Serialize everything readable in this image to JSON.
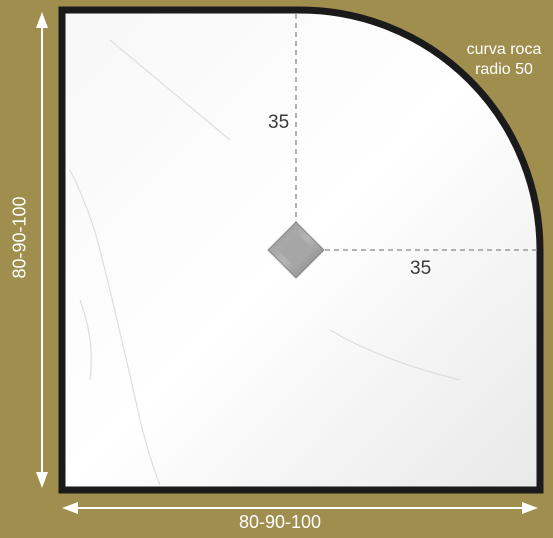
{
  "tray": {
    "corner_label_line1": "curva roca",
    "corner_label_line2": "radio 50",
    "drain_offset_top": "35",
    "drain_offset_right": "35",
    "side_dimension": "80-90-100",
    "bottom_dimension": "80-90-100"
  },
  "colors": {
    "background": "#a08e4e",
    "outline": "#1a1a1a",
    "surface": "#f4f4f4",
    "guide": "#9a9a9a",
    "arrow": "#ffffff"
  }
}
